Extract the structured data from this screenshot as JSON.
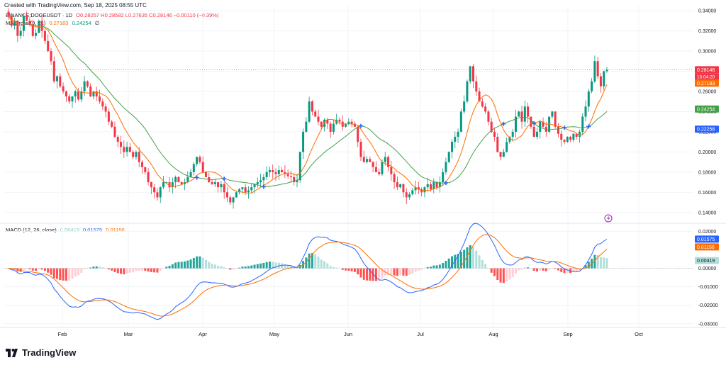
{
  "header": {
    "created": "Created with TradingView.com, Sep 18, 2025 08:55 UTC",
    "symbol": "BINANCE:DOGEUSDT · 1D",
    "ohlc": "O0.28257 H0.28582 L0.27635 C0.28146 −0.00110 (−0.39%)",
    "ma_label": "MA Cross (9, 21)",
    "ma_values": [
      "0.27183",
      "0.24254"
    ],
    "ma_tail": "∅",
    "macd_label": "MACD (12, 26, close)",
    "macd_values": [
      "0.00419",
      "0.01575",
      "0.01156"
    ]
  },
  "brand": {
    "name": "TradingView"
  },
  "colors": {
    "up": "#089981",
    "down": "#f23645",
    "fast_ma": "#ff6d00",
    "slow_ma": "#43a047",
    "macd": "#2962ff",
    "signal": "#ff6d00",
    "cross": "#2962ff",
    "grid": "#f0f3fa"
  },
  "chart_data": [
    {
      "type": "candlestick",
      "title": "BINANCE:DOGEUSDT · 1D",
      "x_labels": [
        "Feb",
        "Mar",
        "Apr",
        "May",
        "Jun",
        "Jul",
        "Aug",
        "Sep",
        "Oct"
      ],
      "y_ticks": [
        "0.34000",
        "0.32000",
        "0.30000",
        "0.28000",
        "0.26000",
        "0.24000",
        "0.22000",
        "0.20000",
        "0.18000",
        "0.16000",
        "0.14000"
      ],
      "ylim": [
        0.13,
        0.345
      ],
      "last_price": 0.28146,
      "countdown": "15:04:20",
      "price_labels": [
        {
          "label": "0.28146",
          "value": 0.28146,
          "color": "#f23645"
        },
        {
          "label": "0.27183",
          "value": 0.27183,
          "color": "#ff6d00"
        },
        {
          "label": "0.24254",
          "value": 0.24254,
          "color": "#43a047"
        },
        {
          "label": "0.22258",
          "value": 0.22258,
          "color": "#2962ff"
        }
      ],
      "close_series": [
        0.335,
        0.325,
        0.33,
        0.315,
        0.32,
        0.335,
        0.33,
        0.326,
        0.315,
        0.318,
        0.33,
        0.32,
        0.31,
        0.3,
        0.29,
        0.27,
        0.275,
        0.265,
        0.26,
        0.255,
        0.25,
        0.255,
        0.26,
        0.252,
        0.26,
        0.27,
        0.265,
        0.255,
        0.26,
        0.255,
        0.25,
        0.245,
        0.24,
        0.23,
        0.225,
        0.215,
        0.21,
        0.205,
        0.2,
        0.205,
        0.2,
        0.195,
        0.2,
        0.19,
        0.185,
        0.18,
        0.17,
        0.165,
        0.16,
        0.155,
        0.165,
        0.17,
        0.17,
        0.165,
        0.17,
        0.175,
        0.17,
        0.168,
        0.17,
        0.175,
        0.18,
        0.188,
        0.195,
        0.19,
        0.18,
        0.175,
        0.17,
        0.168,
        0.17,
        0.165,
        0.168,
        0.16,
        0.155,
        0.15,
        0.155,
        0.16,
        0.163,
        0.165,
        0.16,
        0.162,
        0.165,
        0.168,
        0.17,
        0.172,
        0.175,
        0.18,
        0.182,
        0.18,
        0.178,
        0.182,
        0.18,
        0.178,
        0.176,
        0.175,
        0.17,
        0.172,
        0.2,
        0.22,
        0.23,
        0.25,
        0.24,
        0.235,
        0.23,
        0.225,
        0.232,
        0.228,
        0.22,
        0.228,
        0.232,
        0.23,
        0.225,
        0.228,
        0.23,
        0.228,
        0.225,
        0.21,
        0.195,
        0.19,
        0.193,
        0.19,
        0.185,
        0.18,
        0.178,
        0.19,
        0.195,
        0.185,
        0.178,
        0.17,
        0.165,
        0.168,
        0.16,
        0.155,
        0.158,
        0.162,
        0.165,
        0.163,
        0.16,
        0.165,
        0.168,
        0.163,
        0.17,
        0.165,
        0.17,
        0.18,
        0.19,
        0.2,
        0.21,
        0.215,
        0.22,
        0.24,
        0.25,
        0.27,
        0.285,
        0.27,
        0.26,
        0.25,
        0.245,
        0.24,
        0.23,
        0.22,
        0.215,
        0.2,
        0.195,
        0.2,
        0.21,
        0.215,
        0.22,
        0.235,
        0.24,
        0.23,
        0.245,
        0.235,
        0.225,
        0.215,
        0.22,
        0.23,
        0.225,
        0.22,
        0.235,
        0.24,
        0.225,
        0.218,
        0.212,
        0.21,
        0.215,
        0.212,
        0.218,
        0.215,
        0.22,
        0.235,
        0.245,
        0.26,
        0.27,
        0.29,
        0.275,
        0.265,
        0.28,
        0.2815
      ]
    },
    {
      "type": "bar",
      "title": "MACD (12, 26, close)",
      "y_ticks": [
        "0.02000",
        "0.01575",
        "0.01156",
        "0.00419",
        "0.00000",
        "-0.01000",
        "-0.02000",
        "-0.03000"
      ],
      "ylim": [
        -0.032,
        0.024
      ],
      "last_values": {
        "histogram": 0.00419,
        "macd": 0.01575,
        "signal": 0.01156
      }
    }
  ]
}
